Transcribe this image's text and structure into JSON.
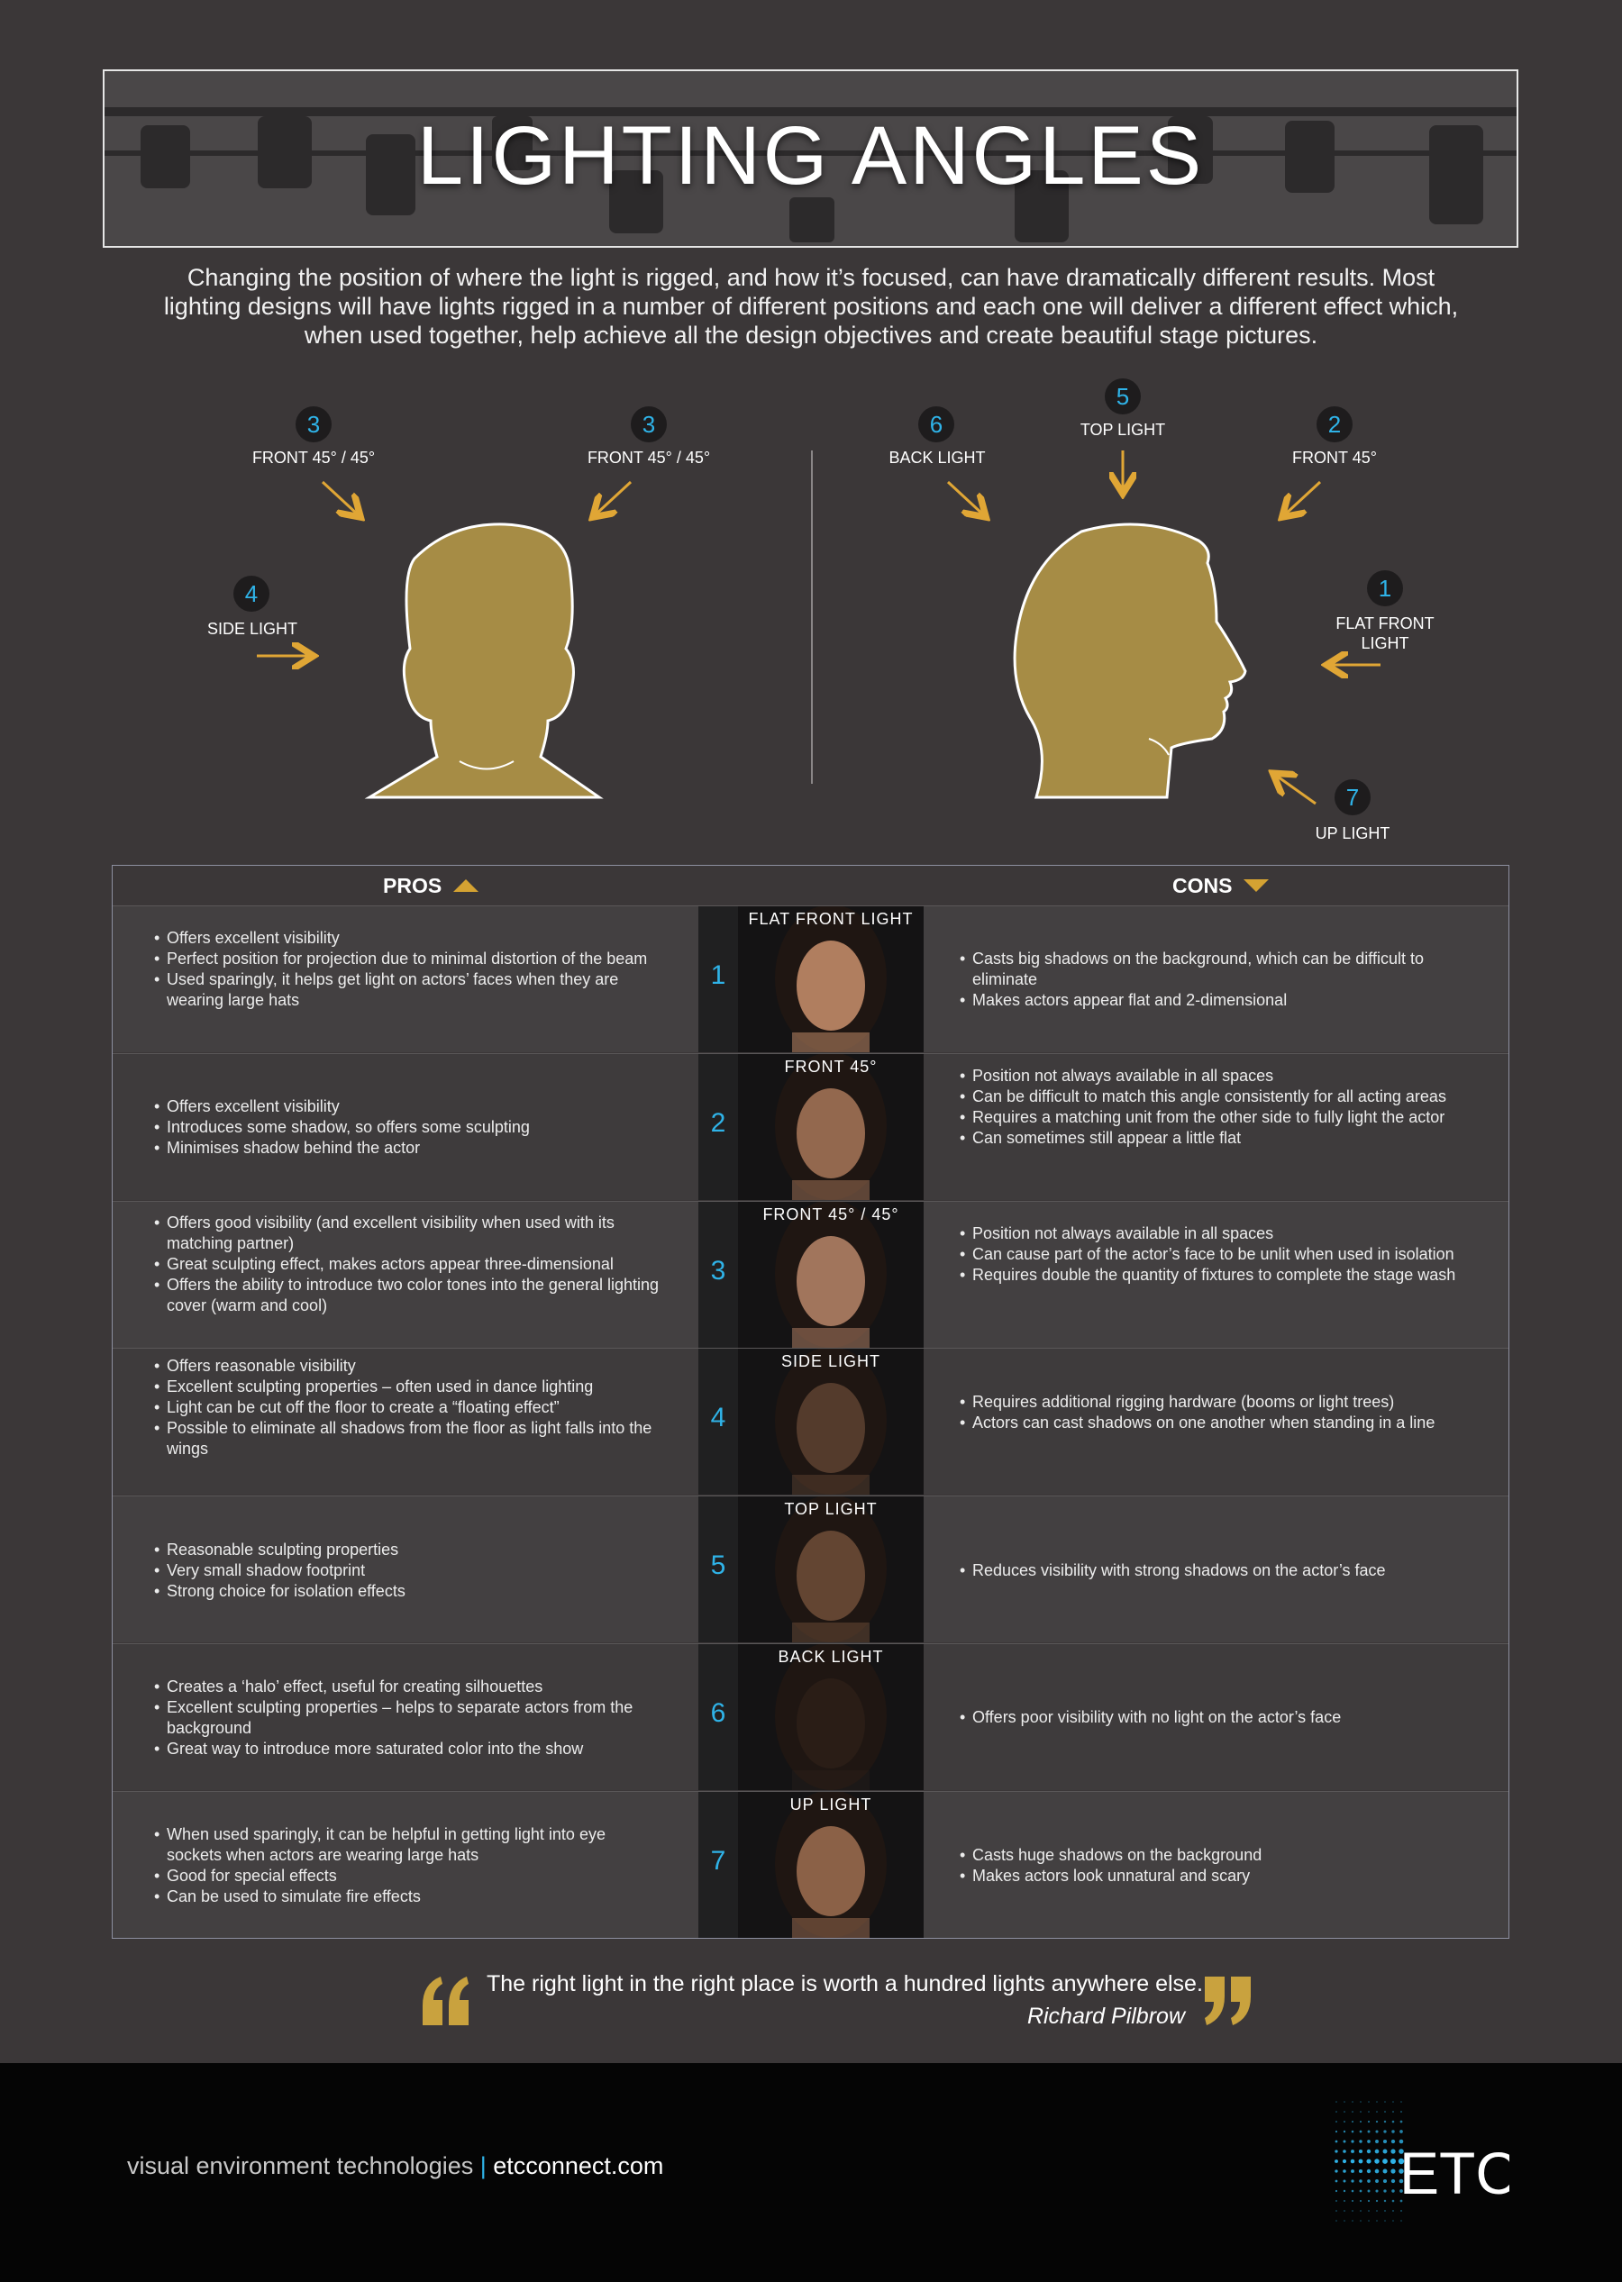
{
  "header": {
    "title": "LIGHTING ANGLES"
  },
  "intro": "Changing the position of where the light is rigged, and how it’s focused, can have dramatically different results. Most lighting designs will have lights rigged in a number of different positions and each one will deliver a different effect which, when used together, help achieve all the design objectives and create beautiful stage pictures.",
  "diagram": {
    "front_view": [
      {
        "num": "3",
        "label": "FRONT 45° / 45°"
      },
      {
        "num": "3",
        "label": "FRONT 45° / 45°"
      },
      {
        "num": "4",
        "label": "SIDE LIGHT"
      }
    ],
    "side_view": [
      {
        "num": "6",
        "label": "BACK LIGHT"
      },
      {
        "num": "5",
        "label": "TOP LIGHT"
      },
      {
        "num": "2",
        "label": "FRONT 45°"
      },
      {
        "num": "1",
        "label": "FLAT FRONT LIGHT"
      },
      {
        "num": "7",
        "label": "UP LIGHT"
      }
    ]
  },
  "table": {
    "pros_header": "PROS",
    "cons_header": "CONS",
    "rows": [
      {
        "num": "1",
        "label": "FLAT FRONT LIGHT",
        "pros": [
          "Offers excellent visibility",
          "Perfect position for projection due to minimal distortion of the beam",
          "Used sparingly, it helps get light on actors’ faces when they are wearing large hats"
        ],
        "cons": [
          "Casts big shadows on the background, which can be difficult to eliminate",
          "Makes actors appear flat and 2-dimensional"
        ]
      },
      {
        "num": "2",
        "label": "FRONT 45°",
        "pros": [
          "Offers excellent visibility",
          "Introduces some shadow, so offers some sculpting",
          "Minimises shadow behind the actor"
        ],
        "cons": [
          "Position not always available in all spaces",
          "Can be difficult to match this angle consistently for all acting areas",
          "Requires a matching unit from the other side to fully light the actor",
          "Can sometimes still appear a little flat"
        ]
      },
      {
        "num": "3",
        "label": "FRONT 45° / 45°",
        "pros": [
          "Offers good visibility (and excellent visibility when used with its matching partner)",
          "Great sculpting effect, makes actors appear three-dimensional",
          "Offers the ability to introduce two color tones into the general lighting cover (warm and cool)"
        ],
        "cons": [
          "Position not always available in all spaces",
          "Can cause part of the actor’s face to be unlit when used in isolation",
          "Requires double the quantity of fixtures to complete the stage wash"
        ]
      },
      {
        "num": "4",
        "label": "SIDE LIGHT",
        "pros": [
          "Offers reasonable visibility",
          "Excellent sculpting properties – often used in dance lighting",
          "Light can be cut off the floor to create a “floating effect”",
          "Possible to eliminate all shadows from the floor as light falls into the wings"
        ],
        "cons": [
          "Requires additional rigging hardware (booms or light trees)",
          "Actors can cast shadows on one another when standing in a line"
        ]
      },
      {
        "num": "5",
        "label": "TOP LIGHT",
        "pros": [
          "Reasonable sculpting properties",
          "Very small shadow footprint",
          "Strong choice for isolation effects"
        ],
        "cons": [
          "Reduces visibility with strong shadows on the actor’s face"
        ]
      },
      {
        "num": "6",
        "label": "BACK LIGHT",
        "pros": [
          "Creates a ‘halo’ effect, useful for creating silhouettes",
          "Excellent sculpting properties – helps to separate actors from the background",
          "Great way to introduce more saturated color into the show"
        ],
        "cons": [
          "Offers poor visibility  with no light on the actor’s face"
        ]
      },
      {
        "num": "7",
        "label": "UP LIGHT",
        "pros": [
          "When used sparingly, it can be helpful in getting light into eye sockets when actors are wearing large hats",
          "Good for special effects",
          "Can be used to simulate fire effects"
        ],
        "cons": [
          "Casts huge shadows on the background",
          "Makes actors look unnatural and scary"
        ]
      }
    ]
  },
  "quote": {
    "text": "The right light in the right place is worth a hundred lights anywhere else.",
    "author": "Richard Pilbrow"
  },
  "footer": {
    "tagline": "visual environment technologies",
    "separator": "|",
    "site": "etcconnect.com",
    "logo_text": "ETC"
  },
  "colors": {
    "background": "#3b3738",
    "gold": "#b69a4a",
    "accent_blue": "#2fb3e8",
    "footer_bg": "#050505"
  }
}
